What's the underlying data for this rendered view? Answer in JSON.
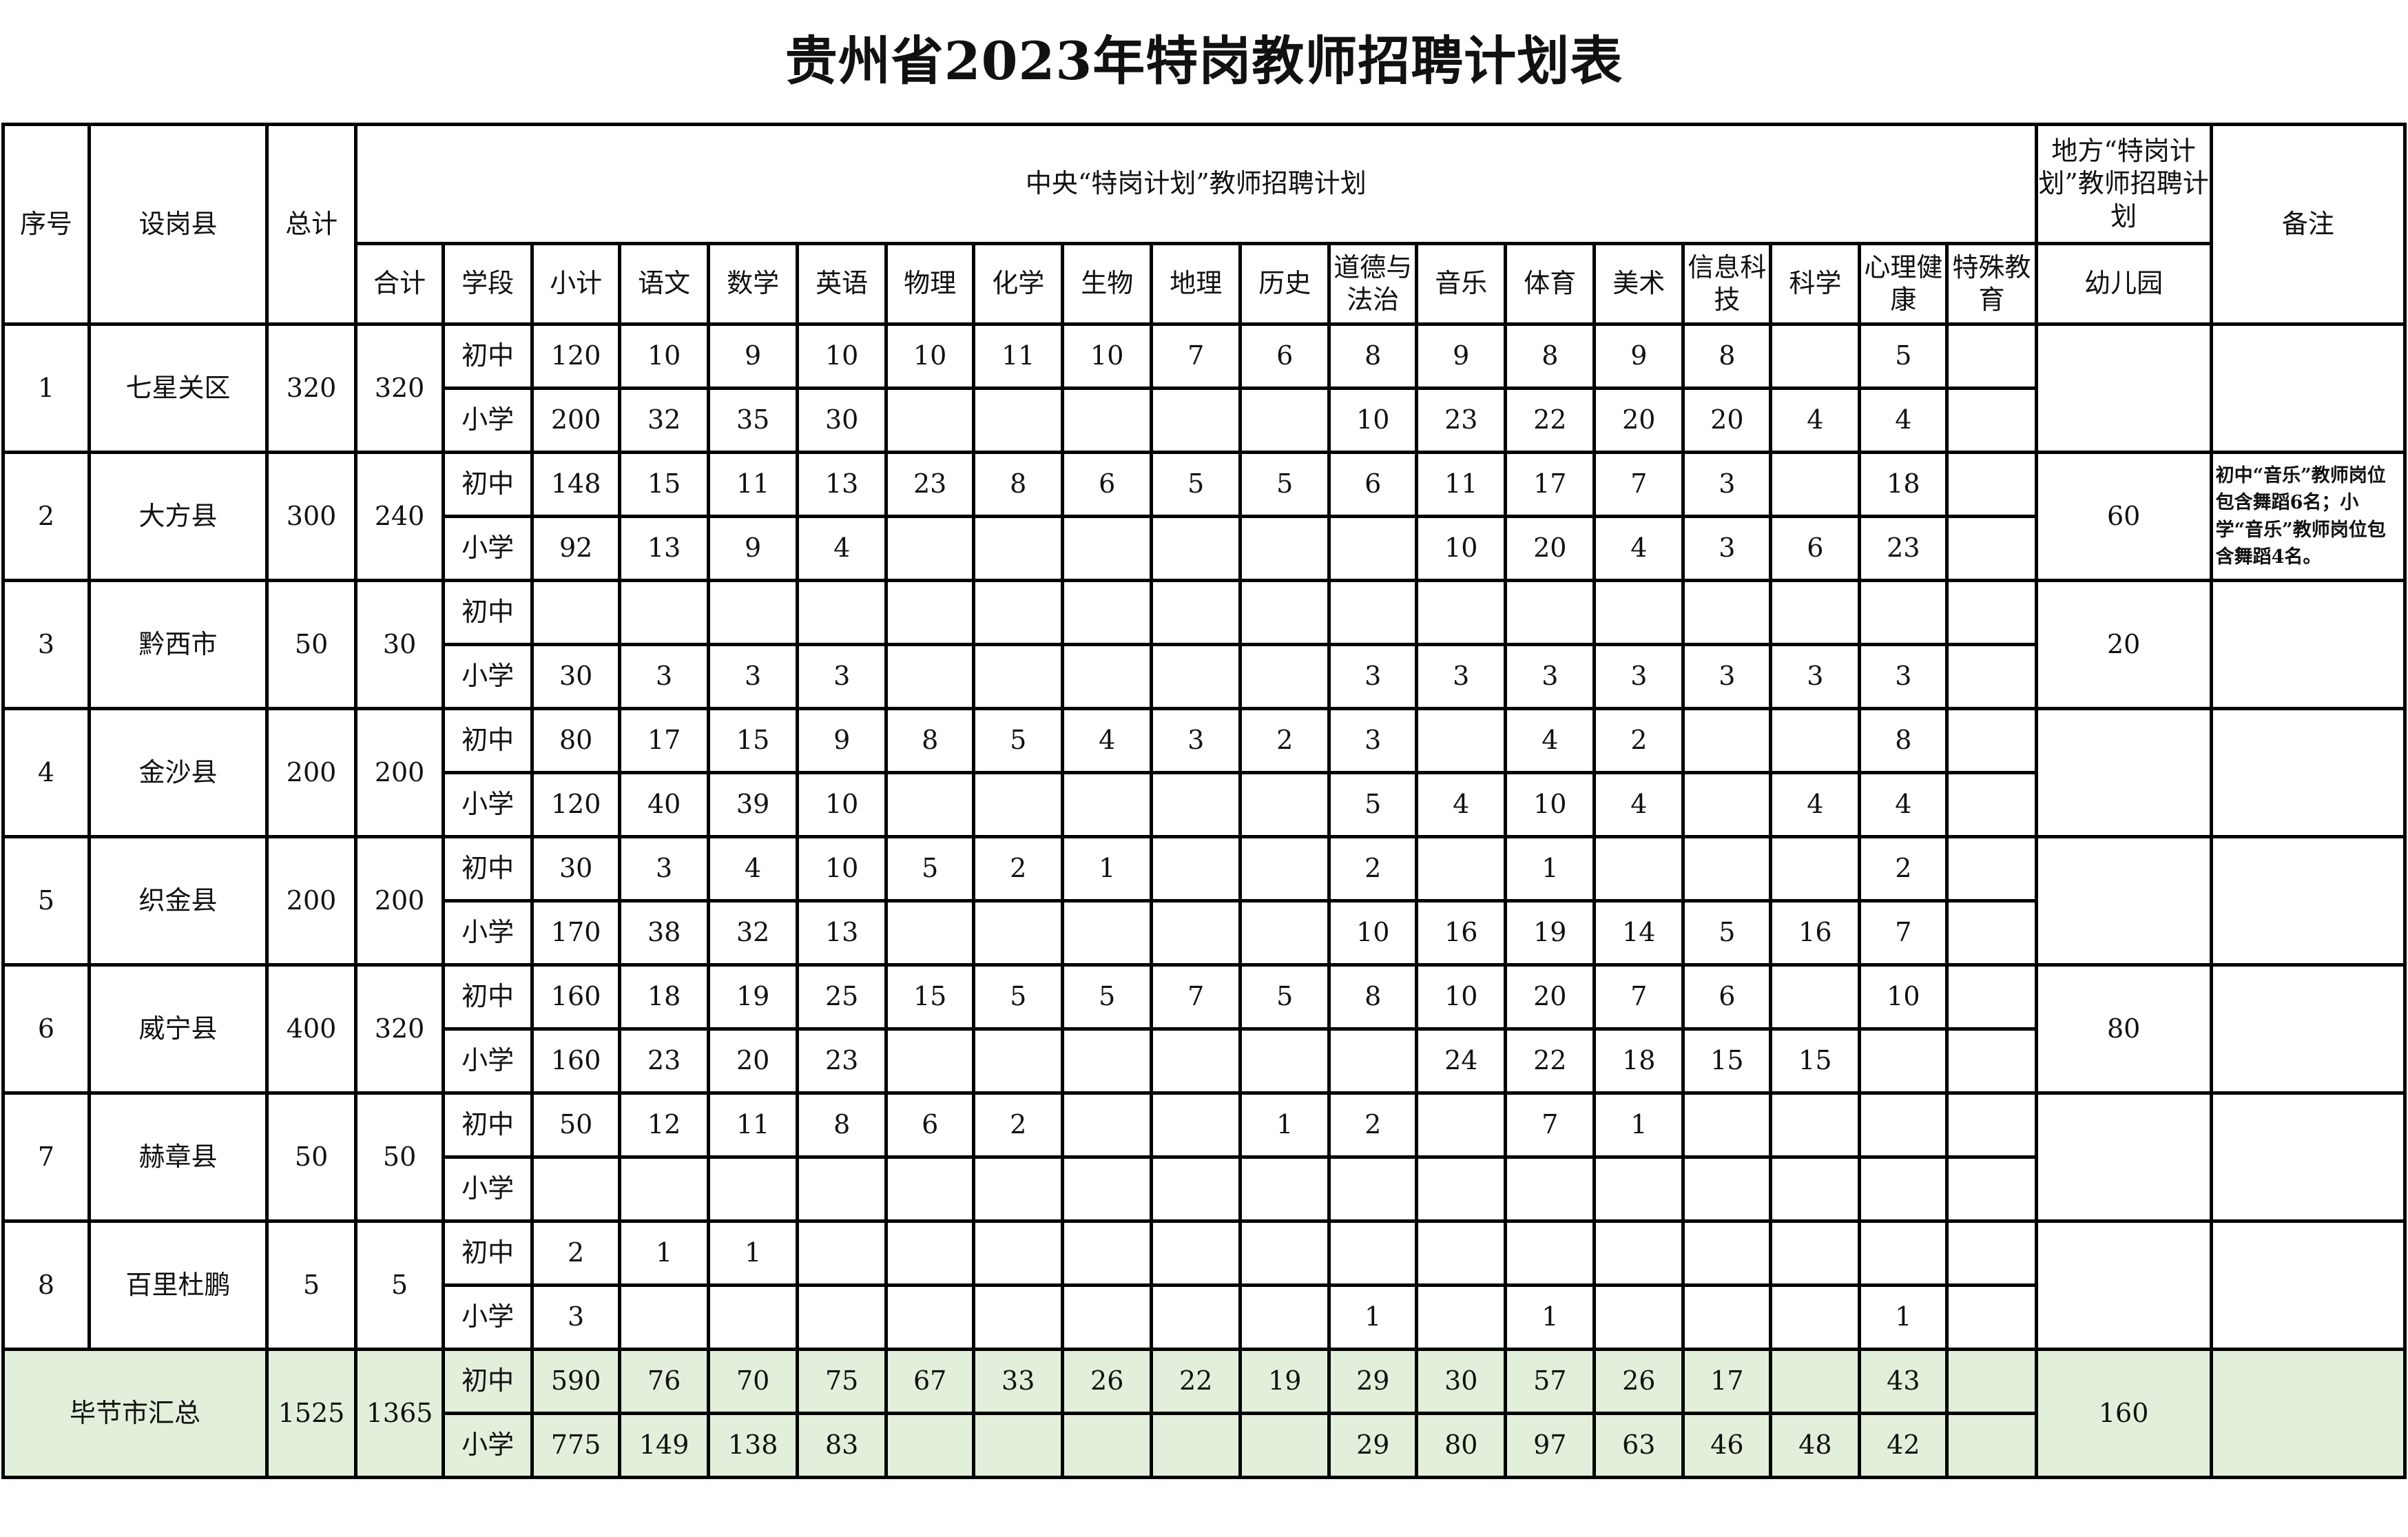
{
  "title": "贵州省2023年特岗教师招聘计划表",
  "header": {
    "seq": "序号",
    "county": "设岗县",
    "total": "总计",
    "central_plan": "中央“特岗计划”教师招聘计划",
    "local_plan": "地方“特岗计划”教师招聘计划",
    "remark": "备注",
    "subtotal_all": "合计",
    "stage": "学段",
    "subjects": [
      "小计",
      "语文",
      "数学",
      "英语",
      "物理",
      "化学",
      "生物",
      "地理",
      "历史",
      "道德与法治",
      "音乐",
      "体育",
      "美术",
      "信息科技",
      "科学",
      "心理健康",
      "特殊教育"
    ],
    "kindergarten": "幼儿园"
  },
  "counties": [
    {
      "no": "1",
      "name": "七星关区",
      "total": "320",
      "sum": "320",
      "kindergarten": "",
      "remark": "",
      "stages": [
        {
          "stage": "初中",
          "values": [
            "120",
            "10",
            "9",
            "10",
            "10",
            "11",
            "10",
            "7",
            "6",
            "8",
            "9",
            "8",
            "9",
            "8",
            "",
            "5",
            ""
          ]
        },
        {
          "stage": "小学",
          "values": [
            "200",
            "32",
            "35",
            "30",
            "",
            "",
            "",
            "",
            "",
            "10",
            "23",
            "22",
            "20",
            "20",
            "4",
            "4",
            ""
          ]
        }
      ]
    },
    {
      "no": "2",
      "name": "大方县",
      "total": "300",
      "sum": "240",
      "kindergarten": "60",
      "remark": "初中“音乐”教师岗位包含舞蹈6名；小学“音乐”教师岗位包含舞蹈4名。",
      "stages": [
        {
          "stage": "初中",
          "values": [
            "148",
            "15",
            "11",
            "13",
            "23",
            "8",
            "6",
            "5",
            "5",
            "6",
            "11",
            "17",
            "7",
            "3",
            "",
            "18",
            ""
          ]
        },
        {
          "stage": "小学",
          "values": [
            "92",
            "13",
            "9",
            "4",
            "",
            "",
            "",
            "",
            "",
            "",
            "10",
            "20",
            "4",
            "3",
            "6",
            "23",
            ""
          ]
        }
      ]
    },
    {
      "no": "3",
      "name": "黔西市",
      "total": "50",
      "sum": "30",
      "kindergarten": "20",
      "remark": "",
      "stages": [
        {
          "stage": "初中",
          "values": [
            "",
            "",
            "",
            "",
            "",
            "",
            "",
            "",
            "",
            "",
            "",
            "",
            "",
            "",
            "",
            "",
            ""
          ]
        },
        {
          "stage": "小学",
          "values": [
            "30",
            "3",
            "3",
            "3",
            "",
            "",
            "",
            "",
            "",
            "3",
            "3",
            "3",
            "3",
            "3",
            "3",
            "3",
            ""
          ]
        }
      ]
    },
    {
      "no": "4",
      "name": "金沙县",
      "total": "200",
      "sum": "200",
      "kindergarten": "",
      "remark": "",
      "stages": [
        {
          "stage": "初中",
          "values": [
            "80",
            "17",
            "15",
            "9",
            "8",
            "5",
            "4",
            "3",
            "2",
            "3",
            "",
            "4",
            "2",
            "",
            "",
            "8",
            ""
          ]
        },
        {
          "stage": "小学",
          "values": [
            "120",
            "40",
            "39",
            "10",
            "",
            "",
            "",
            "",
            "",
            "5",
            "4",
            "10",
            "4",
            "",
            "4",
            "4",
            ""
          ]
        }
      ]
    },
    {
      "no": "5",
      "name": "织金县",
      "total": "200",
      "sum": "200",
      "kindergarten": "",
      "remark": "",
      "stages": [
        {
          "stage": "初中",
          "values": [
            "30",
            "3",
            "4",
            "10",
            "5",
            "2",
            "1",
            "",
            "",
            "2",
            "",
            "1",
            "",
            "",
            "",
            "2",
            ""
          ]
        },
        {
          "stage": "小学",
          "values": [
            "170",
            "38",
            "32",
            "13",
            "",
            "",
            "",
            "",
            "",
            "10",
            "16",
            "19",
            "14",
            "5",
            "16",
            "7",
            ""
          ]
        }
      ]
    },
    {
      "no": "6",
      "name": "威宁县",
      "total": "400",
      "sum": "320",
      "kindergarten": "80",
      "remark": "",
      "stages": [
        {
          "stage": "初中",
          "values": [
            "160",
            "18",
            "19",
            "25",
            "15",
            "5",
            "5",
            "7",
            "5",
            "8",
            "10",
            "20",
            "7",
            "6",
            "",
            "10",
            ""
          ]
        },
        {
          "stage": "小学",
          "values": [
            "160",
            "23",
            "20",
            "23",
            "",
            "",
            "",
            "",
            "",
            "",
            "24",
            "22",
            "18",
            "15",
            "15",
            "",
            ""
          ]
        }
      ]
    },
    {
      "no": "7",
      "name": "赫章县",
      "total": "50",
      "sum": "50",
      "kindergarten": "",
      "remark": "",
      "stages": [
        {
          "stage": "初中",
          "values": [
            "50",
            "12",
            "11",
            "8",
            "6",
            "2",
            "",
            "",
            "1",
            "2",
            "",
            "7",
            "1",
            "",
            "",
            "",
            ""
          ]
        },
        {
          "stage": "小学",
          "values": [
            "",
            "",
            "",
            "",
            "",
            "",
            "",
            "",
            "",
            "",
            "",
            "",
            "",
            "",
            "",
            "",
            ""
          ]
        }
      ]
    },
    {
      "no": "8",
      "name": "百里杜鹏",
      "total": "5",
      "sum": "5",
      "kindergarten": "",
      "remark": "",
      "stages": [
        {
          "stage": "初中",
          "values": [
            "2",
            "1",
            "1",
            "",
            "",
            "",
            "",
            "",
            "",
            "",
            "",
            "",
            "",
            "",
            "",
            "",
            ""
          ]
        },
        {
          "stage": "小学",
          "values": [
            "3",
            "",
            "",
            "",
            "",
            "",
            "",
            "",
            "",
            "1",
            "",
            "1",
            "",
            "",
            "",
            "1",
            ""
          ]
        }
      ]
    }
  ],
  "summary": {
    "name": "毕节市汇总",
    "total": "1525",
    "sum": "1365",
    "kindergarten": "160",
    "remark": "",
    "stages": [
      {
        "stage": "初中",
        "values": [
          "590",
          "76",
          "70",
          "75",
          "67",
          "33",
          "26",
          "22",
          "19",
          "29",
          "30",
          "57",
          "26",
          "17",
          "",
          "43",
          ""
        ]
      },
      {
        "stage": "小学",
        "values": [
          "775",
          "149",
          "138",
          "83",
          "",
          "",
          "",
          "",
          "",
          "29",
          "80",
          "97",
          "63",
          "46",
          "48",
          "42",
          ""
        ]
      }
    ]
  },
  "colors": {
    "border": "#000000",
    "summary_bg": "#e2efda"
  }
}
